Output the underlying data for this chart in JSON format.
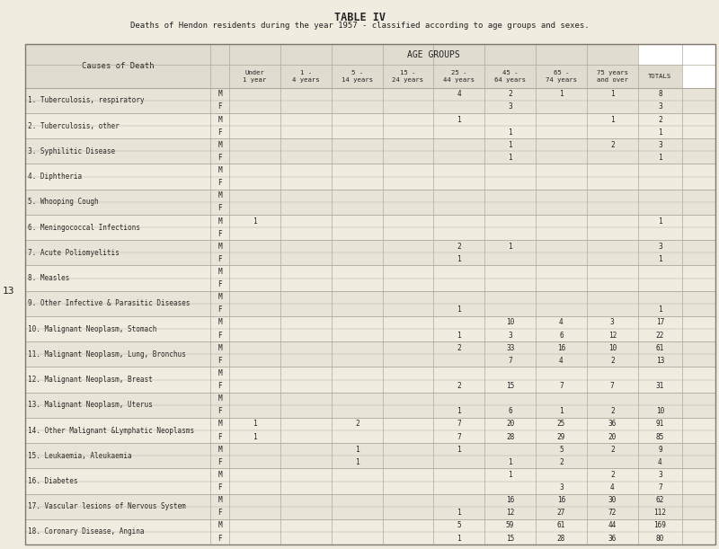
{
  "title": "TABLE IV",
  "subtitle": "Deaths of Hendon residents during the year 1957 - classified according to age groups and sexes.",
  "col_headers": [
    "Under\n1 year",
    "1 -\n4 years",
    "5 -\n14 years",
    "15 -\n24 years",
    "25 -\n44 years",
    "45 -\n64 years",
    "65 -\n74 years",
    "75 years\nand over",
    "TOTALS"
  ],
  "age_groups_header": "AGE GROUPS",
  "causes": [
    "1. Tuberculosis, respiratory",
    "2. Tuberculosis, other",
    "3. Syphilitic Disease",
    "4. Diphtheria",
    "5. Whooping Cough",
    "6. Meningococcal Infections",
    "7. Acute Poliomyelitis",
    "8. Measles",
    "9. Other Infective & Parasitic Diseases",
    "10. Malignant Neoplasm, Stomach",
    "11. Malignant Neoplasm, Lung, Bronchus",
    "12. Malignant Neoplasm, Breast",
    "13. Malignant Neoplasm, Uterus",
    "14. Other Malignant &Lymphatic Neoplasms",
    "15. Leukaemia, Aleukaemia",
    "16. Diabetes",
    "17. Vascular lesions of Nervous System",
    "18. Coronary Disease, Angina"
  ],
  "data": {
    "1. Tuberculosis, respiratory": {
      "M": [
        "",
        "",
        "",
        "",
        "4",
        "2",
        "1",
        "1",
        "8"
      ],
      "F": [
        "",
        "",
        "",
        "",
        "",
        "3",
        "",
        "",
        "3"
      ]
    },
    "2. Tuberculosis, other": {
      "M": [
        "",
        "",
        "",
        "",
        "1",
        "",
        "",
        "1",
        "2"
      ],
      "F": [
        "",
        "",
        "",
        "",
        "",
        "1",
        "",
        "",
        "1"
      ]
    },
    "3. Syphilitic Disease": {
      "M": [
        "",
        "",
        "",
        "",
        "",
        "1",
        "",
        "2",
        "3"
      ],
      "F": [
        "",
        "",
        "",
        "",
        "",
        "1",
        "",
        "",
        "1"
      ]
    },
    "4. Diphtheria": {
      "M": [
        "",
        "",
        "",
        "",
        "",
        "",
        "",
        "",
        ""
      ],
      "F": [
        "",
        "",
        "",
        "",
        "",
        "",
        "",
        "",
        ""
      ]
    },
    "5. Whooping Cough": {
      "M": [
        "",
        "",
        "",
        "",
        "",
        "",
        "",
        "",
        ""
      ],
      "F": [
        "",
        "",
        "",
        "",
        "",
        "",
        "",
        "",
        ""
      ]
    },
    "6. Meningococcal Infections": {
      "M": [
        "1",
        "",
        "",
        "",
        "",
        "",
        "",
        "",
        "1"
      ],
      "F": [
        "",
        "",
        "",
        "",
        "",
        "",
        "",
        "",
        ""
      ]
    },
    "7. Acute Poliomyelitis": {
      "M": [
        "",
        "",
        "",
        "",
        "2",
        "1",
        "",
        "",
        "3"
      ],
      "F": [
        "",
        "",
        "",
        "",
        "1",
        "",
        "",
        "",
        "1"
      ]
    },
    "8. Measles": {
      "M": [
        "",
        "",
        "",
        "",
        "",
        "",
        "",
        "",
        ""
      ],
      "F": [
        "",
        "",
        "",
        "",
        "",
        "",
        "",
        "",
        ""
      ]
    },
    "9. Other Infective & Parasitic Diseases": {
      "M": [
        "",
        "",
        "",
        "",
        "",
        "",
        "",
        "",
        ""
      ],
      "F": [
        "",
        "",
        "",
        "",
        "1",
        "",
        "",
        "",
        "1"
      ]
    },
    "10. Malignant Neoplasm, Stomach": {
      "M": [
        "",
        "",
        "",
        "",
        "",
        "10",
        "4",
        "3",
        "17"
      ],
      "F": [
        "",
        "",
        "",
        "",
        "1",
        "3",
        "6",
        "12",
        "22"
      ]
    },
    "11. Malignant Neoplasm, Lung, Bronchus": {
      "M": [
        "",
        "",
        "",
        "",
        "2",
        "33",
        "16",
        "10",
        "61"
      ],
      "F": [
        "",
        "",
        "",
        "",
        "",
        "7",
        "4",
        "2",
        "13"
      ]
    },
    "12. Malignant Neoplasm, Breast": {
      "M": [
        "",
        "",
        "",
        "",
        "",
        "",
        "",
        "",
        ""
      ],
      "F": [
        "",
        "",
        "",
        "",
        "2",
        "15",
        "7",
        "7",
        "31"
      ]
    },
    "13. Malignant Neoplasm, Uterus": {
      "M": [
        "",
        "",
        "",
        "",
        "",
        "",
        "",
        "",
        ""
      ],
      "F": [
        "",
        "",
        "",
        "",
        "1",
        "6",
        "1",
        "2",
        "10"
      ]
    },
    "14. Other Malignant &Lymphatic Neoplasms": {
      "M": [
        "1",
        "",
        "2",
        "",
        "7",
        "20",
        "25",
        "36",
        "91"
      ],
      "F": [
        "1",
        "",
        "",
        "",
        "7",
        "28",
        "29",
        "20",
        "85"
      ]
    },
    "15. Leukaemia, Aleukaemia": {
      "M": [
        "",
        "",
        "1",
        "",
        "1",
        "",
        "5",
        "2",
        "9"
      ],
      "F": [
        "",
        "",
        "1",
        "",
        "",
        "1",
        "2",
        "",
        "4"
      ]
    },
    "16. Diabetes": {
      "M": [
        "",
        "",
        "",
        "",
        "",
        "1",
        "",
        "2",
        "3"
      ],
      "F": [
        "",
        "",
        "",
        "",
        "",
        "",
        "3",
        "4",
        "7"
      ]
    },
    "17. Vascular lesions of Nervous System": {
      "M": [
        "",
        "",
        "",
        "",
        "",
        "16",
        "16",
        "30",
        "62"
      ],
      "F": [
        "",
        "",
        "",
        "",
        "1",
        "12",
        "27",
        "72",
        "112"
      ]
    },
    "18. Coronary Disease, Angina": {
      "M": [
        "",
        "",
        "",
        "",
        "5",
        "59",
        "61",
        "44",
        "169"
      ],
      "F": [
        "",
        "",
        "",
        "",
        "1",
        "15",
        "28",
        "36",
        "80"
      ]
    }
  },
  "bg_color": "#f0ece0",
  "header_bg": "#e0dcd0",
  "grid_color": "#b0a898",
  "text_color": "#222222",
  "row_bg_even": "#e8e4d8",
  "row_bg_odd": "#f0ece0"
}
